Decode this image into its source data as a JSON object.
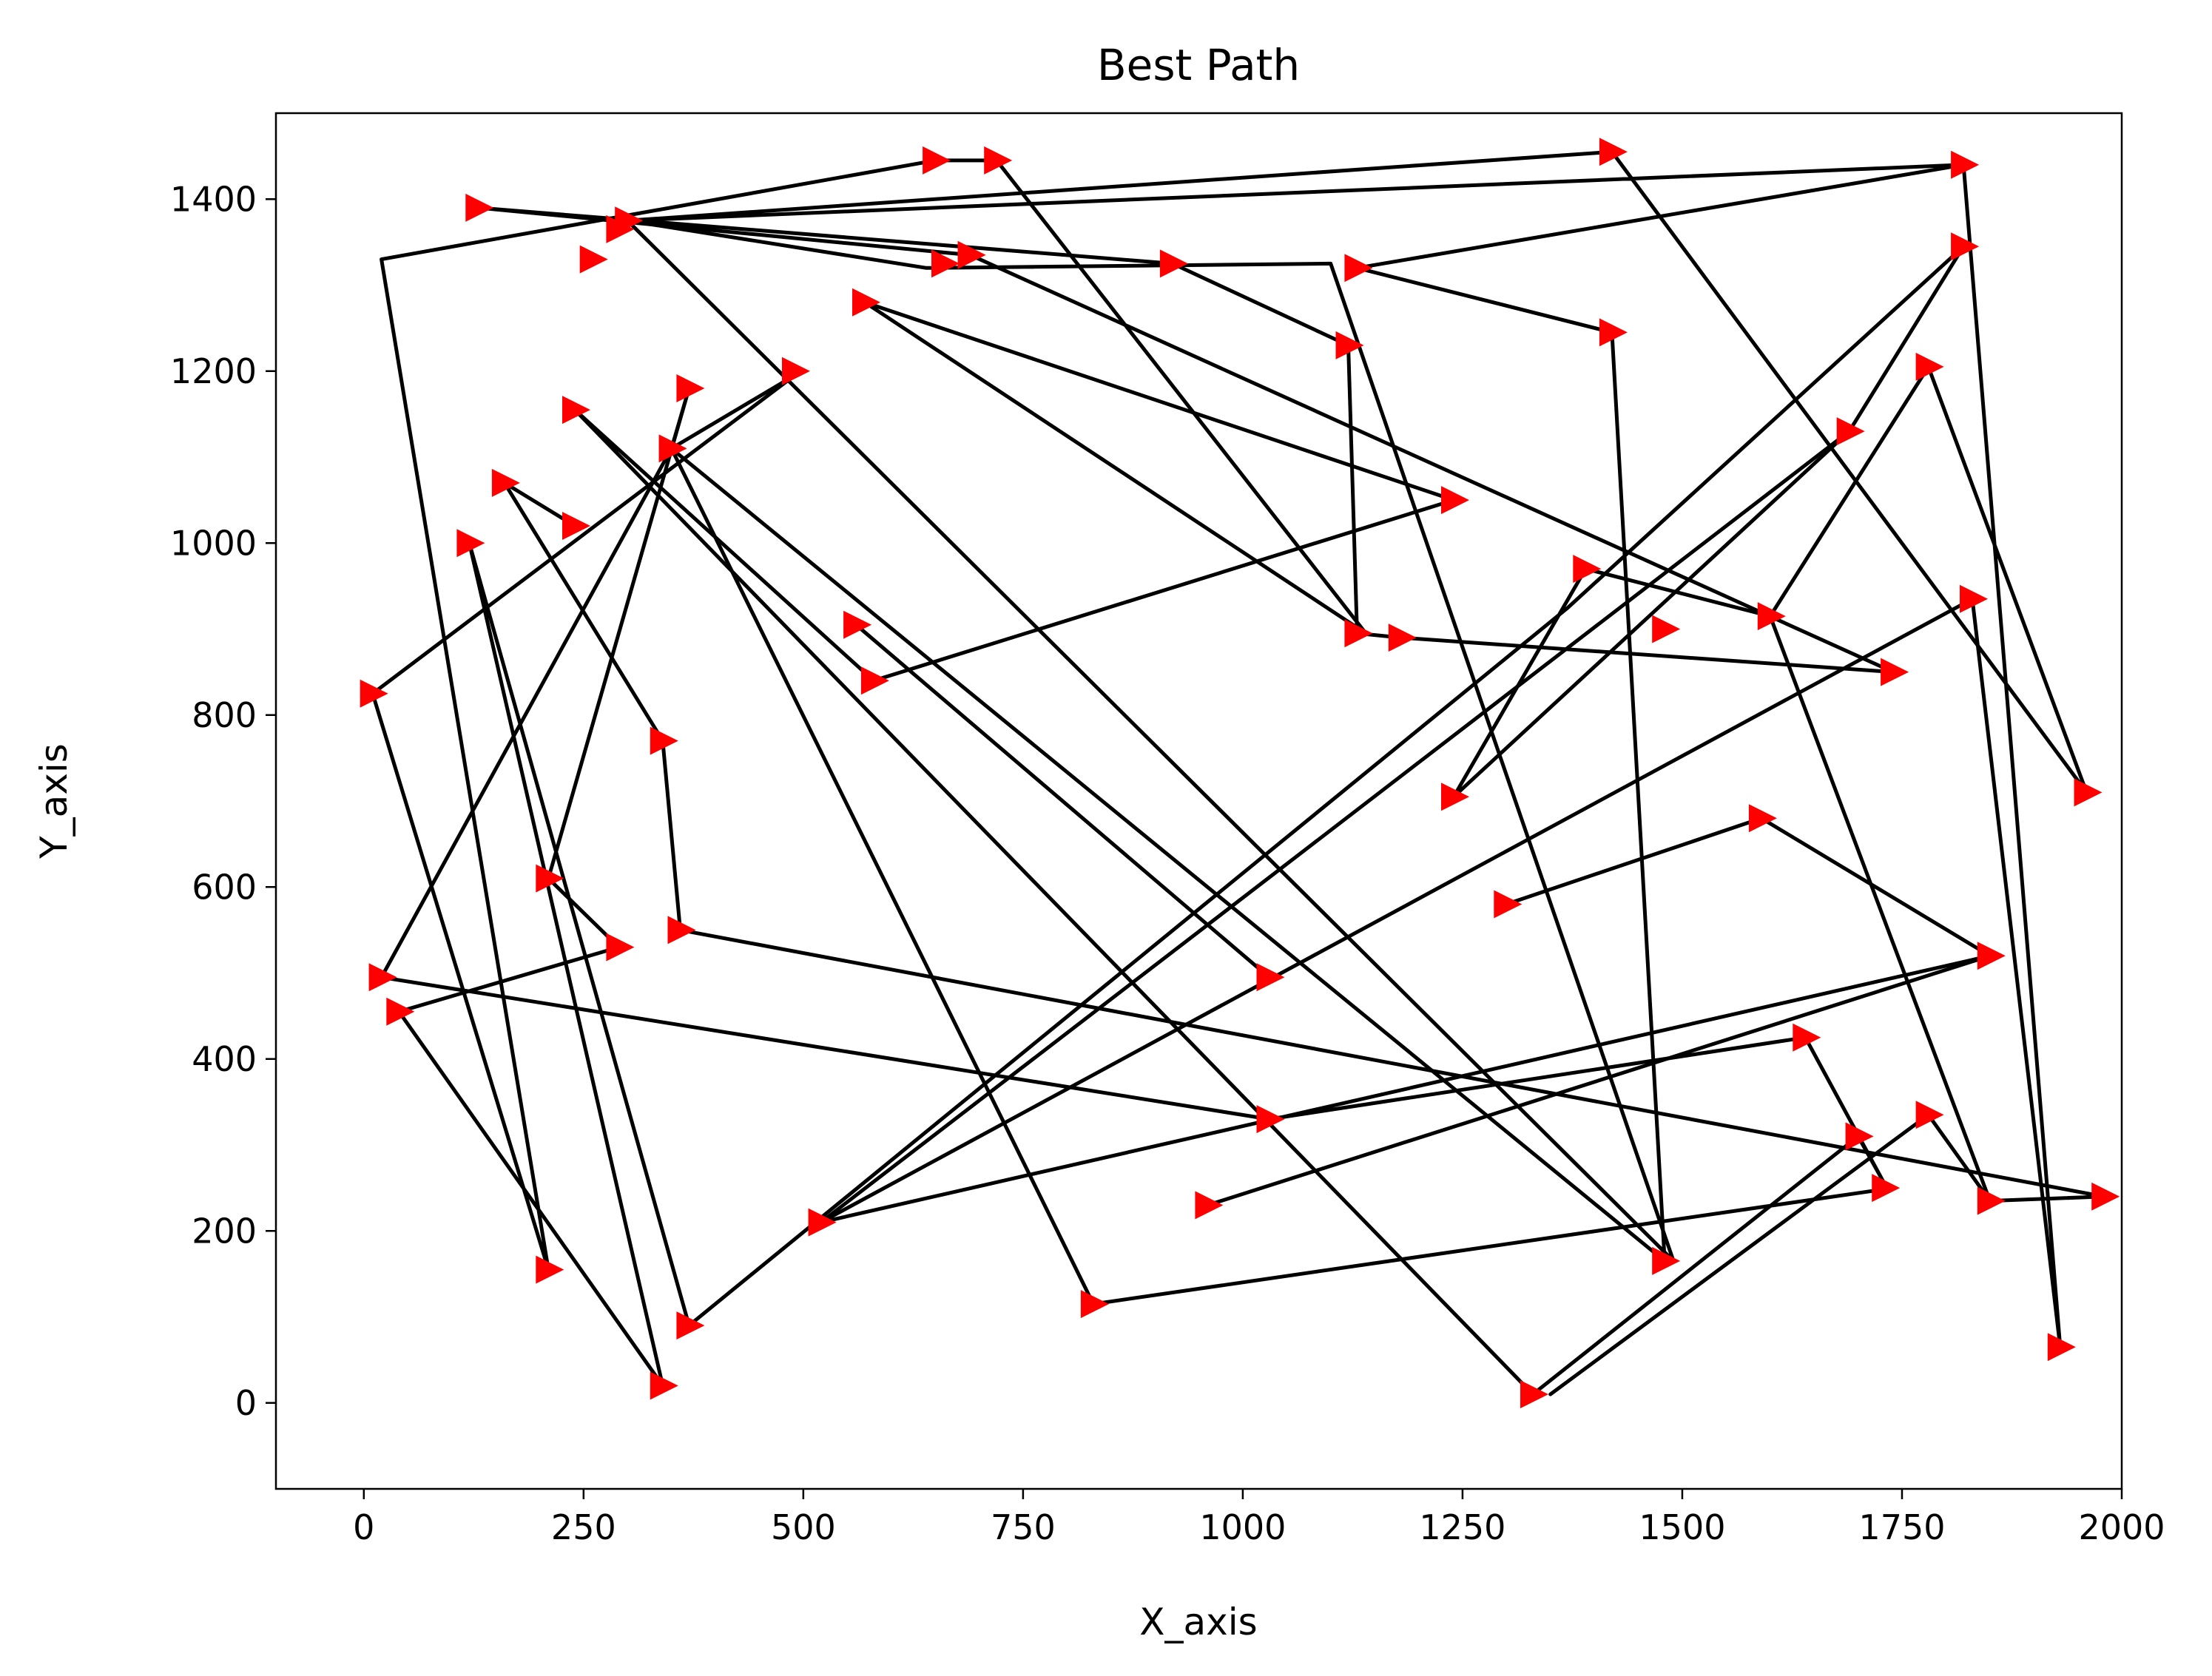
{
  "chart_data": {
    "type": "line",
    "title": "Best Path",
    "xlabel": "X_axis",
    "ylabel": "Y_axis",
    "xlim": [
      -100,
      2000
    ],
    "ylim": [
      -100,
      1500
    ],
    "xticks": [
      0,
      250,
      500,
      750,
      1000,
      1250,
      1500,
      1750,
      2000
    ],
    "yticks": [
      0,
      200,
      400,
      600,
      800,
      1000,
      1200,
      1400
    ],
    "grid": false,
    "legend": "none",
    "colors": {
      "line": "#000000",
      "marker": "#ff0000",
      "background": "#ffffff"
    },
    "marker": "triangle-right",
    "series": [
      {
        "path": [
          [
            1300,
            580
          ],
          [
            1590,
            680
          ],
          [
            1850,
            520
          ],
          [
            520,
            210
          ],
          [
            1830,
            935
          ],
          [
            1930,
            65
          ],
          [
            1820,
            1440
          ],
          [
            1130,
            1320
          ],
          [
            1420,
            1245
          ],
          [
            1480,
            165
          ],
          [
            350,
            1110
          ],
          [
            20,
            495
          ],
          [
            1030,
            330
          ],
          [
            1640,
            425
          ],
          [
            1730,
            255
          ],
          [
            1700,
            310
          ],
          [
            1330,
            10
          ],
          [
            240,
            1155
          ],
          [
            580,
            840
          ],
          [
            1240,
            1050
          ],
          [
            570,
            1280
          ],
          [
            1140,
            895
          ],
          [
            720,
            1445
          ],
          [
            650,
            1445
          ],
          [
            20,
            1330
          ],
          [
            210,
            155
          ],
          [
            10,
            825
          ],
          [
            490,
            1195
          ],
          [
            350,
            1110
          ],
          [
            370,
            1180
          ],
          [
            210,
            610
          ],
          [
            290,
            530
          ],
          [
            40,
            455
          ],
          [
            340,
            20
          ],
          [
            120,
            1000
          ],
          [
            370,
            90
          ],
          [
            1370,
            925
          ],
          [
            1820,
            1345
          ],
          [
            1690,
            1130
          ],
          [
            1240,
            705
          ],
          [
            1390,
            970
          ],
          [
            1600,
            915
          ],
          [
            1780,
            1205
          ],
          [
            1960,
            710
          ],
          [
            1420,
            1455
          ],
          [
            300,
            1375
          ],
          [
            1490,
            165
          ],
          [
            1100,
            1325
          ],
          [
            640,
            1320
          ],
          [
            300,
            1375
          ],
          [
            1820,
            1440
          ]
        ]
      },
      {
        "path": [
          [
            130,
            1390
          ],
          [
            920,
            1325
          ],
          [
            1120,
            1230
          ],
          [
            1130,
            895
          ],
          [
            1180,
            890
          ],
          [
            1740,
            850
          ],
          [
            690,
            1335
          ],
          [
            130,
            1390
          ]
        ]
      },
      {
        "path": [
          [
            160,
            1070
          ],
          [
            240,
            1020
          ]
        ]
      },
      {
        "path": [
          [
            160,
            1070
          ],
          [
            340,
            770
          ],
          [
            360,
            550
          ],
          [
            1980,
            240
          ],
          [
            1850,
            235
          ],
          [
            1780,
            335
          ],
          [
            1350,
            10
          ]
        ]
      },
      {
        "path": [
          [
            1850,
            235
          ],
          [
            1600,
            915
          ]
        ]
      },
      {
        "path": [
          [
            1030,
            495
          ],
          [
            560,
            905
          ]
        ]
      },
      {
        "path": [
          [
            960,
            230
          ],
          [
            1850,
            520
          ]
        ]
      },
      {
        "path": [
          [
            1740,
            250
          ],
          [
            830,
            115
          ],
          [
            350,
            1110
          ]
        ]
      },
      {
        "path": [
          [
            1690,
            1130
          ],
          [
            520,
            210
          ]
        ]
      }
    ],
    "markers": [
      [
        260,
        1330
      ],
      [
        130,
        1390
      ],
      [
        300,
        1375
      ],
      [
        290,
        1365
      ],
      [
        650,
        1445
      ],
      [
        720,
        1445
      ],
      [
        660,
        1325
      ],
      [
        690,
        1335
      ],
      [
        920,
        1325
      ],
      [
        1130,
        1320
      ],
      [
        1420,
        1455
      ],
      [
        1820,
        1440
      ],
      [
        1820,
        1345
      ],
      [
        1120,
        1230
      ],
      [
        1420,
        1245
      ],
      [
        570,
        1280
      ],
      [
        490,
        1200
      ],
      [
        370,
        1180
      ],
      [
        240,
        1155
      ],
      [
        350,
        1110
      ],
      [
        160,
        1070
      ],
      [
        240,
        1020
      ],
      [
        120,
        1000
      ],
      [
        1240,
        1050
      ],
      [
        1780,
        1205
      ],
      [
        1690,
        1130
      ],
      [
        1390,
        970
      ],
      [
        1600,
        915
      ],
      [
        1480,
        900
      ],
      [
        1130,
        895
      ],
      [
        1180,
        890
      ],
      [
        1740,
        850
      ],
      [
        1830,
        935
      ],
      [
        560,
        905
      ],
      [
        580,
        840
      ],
      [
        10,
        825
      ],
      [
        340,
        770
      ],
      [
        1240,
        705
      ],
      [
        1960,
        710
      ],
      [
        210,
        610
      ],
      [
        290,
        530
      ],
      [
        360,
        550
      ],
      [
        1300,
        580
      ],
      [
        1590,
        680
      ],
      [
        1850,
        520
      ],
      [
        20,
        495
      ],
      [
        40,
        455
      ],
      [
        1030,
        495
      ],
      [
        1640,
        425
      ],
      [
        1030,
        330
      ],
      [
        1700,
        310
      ],
      [
        1780,
        335
      ],
      [
        1850,
        235
      ],
      [
        1980,
        240
      ],
      [
        1730,
        250
      ],
      [
        960,
        230
      ],
      [
        520,
        210
      ],
      [
        210,
        155
      ],
      [
        1480,
        165
      ],
      [
        830,
        115
      ],
      [
        370,
        90
      ],
      [
        340,
        20
      ],
      [
        1330,
        10
      ],
      [
        1930,
        65
      ]
    ]
  }
}
